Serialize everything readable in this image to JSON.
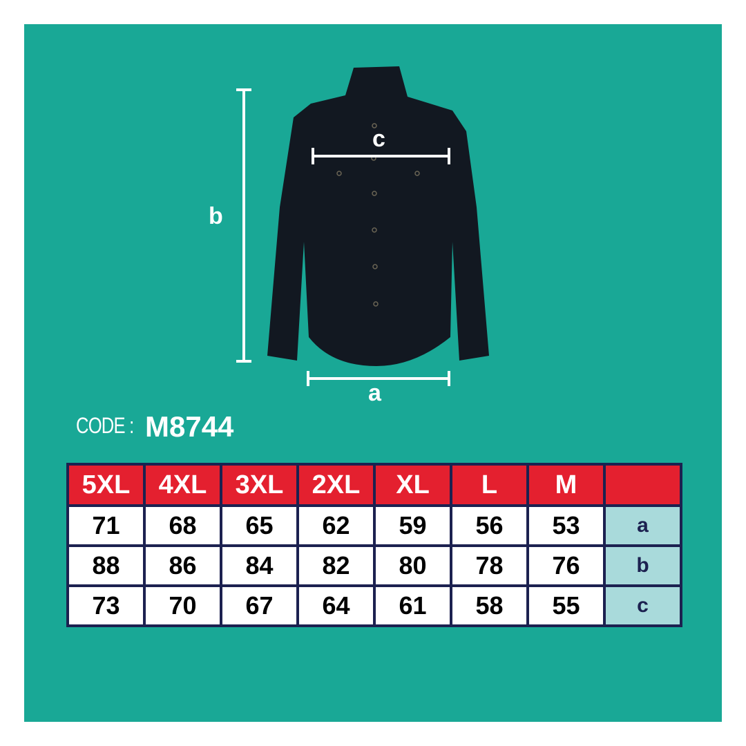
{
  "code": {
    "label": "CODE :",
    "value": "M8744"
  },
  "measure_labels": {
    "a": "a",
    "b": "b",
    "c": "c"
  },
  "colors": {
    "background": "#19a896",
    "header": "#e4202f",
    "border": "#1c2150",
    "label_cell": "#a9dadb"
  },
  "table": {
    "sizes": [
      "5XL",
      "4XL",
      "3XL",
      "2XL",
      "XL",
      "L",
      "M",
      ""
    ],
    "rows": [
      {
        "label": "a",
        "values": [
          "71",
          "68",
          "65",
          "62",
          "59",
          "56",
          "53"
        ]
      },
      {
        "label": "b",
        "values": [
          "88",
          "86",
          "84",
          "82",
          "80",
          "78",
          "76"
        ]
      },
      {
        "label": "c",
        "values": [
          "73",
          "70",
          "67",
          "64",
          "61",
          "58",
          "55"
        ]
      }
    ]
  }
}
